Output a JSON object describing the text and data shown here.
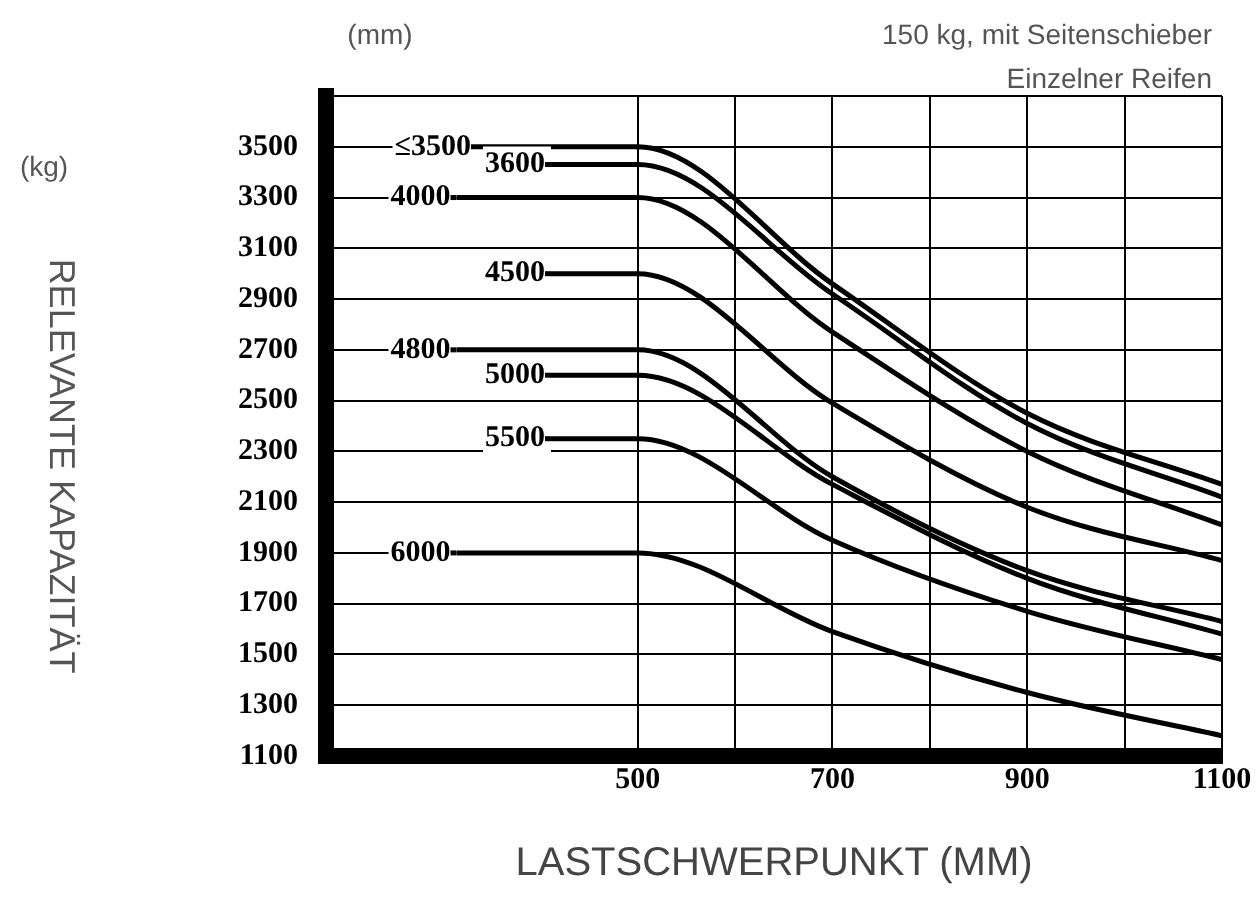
{
  "chart_data": {
    "type": "line",
    "xlabel": "LASTSCHWERPUNKT (MM)",
    "ylabel": "RELEVANTE KAPAZITÄT",
    "annotations": [
      "(mm)",
      "150 kg, mit Seitenschieber",
      "Einzelner Reifen",
      "(kg)"
    ],
    "xlim": [
      180,
      1100
    ],
    "xticks": [
      500,
      {
        "value": 600,
        "label": null
      },
      700,
      {
        "value": 800,
        "label": null
      },
      900,
      {
        "value": 1000,
        "label": null
      },
      1100
    ],
    "ylim": [
      1100,
      3700
    ],
    "yticks": [
      1100,
      1300,
      1500,
      1700,
      1900,
      2100,
      2300,
      2500,
      2700,
      2900,
      3100,
      3300,
      3500,
      {
        "value": 3700,
        "label": null
      }
    ],
    "grid": true,
    "legend": false,
    "marker": "none",
    "line_style": "solid",
    "series": [
      {
        "name": "≤3500",
        "color": "#000000",
        "x": [
          335,
          500,
          700,
          900,
          1100
        ],
        "values": [
          3500,
          3500,
          2960,
          2450,
          2170
        ]
      },
      {
        "name": "3600",
        "color": "#000000",
        "x": [
          411,
          500,
          700,
          900,
          1100
        ],
        "values": [
          3430,
          3430,
          2920,
          2410,
          2120
        ]
      },
      {
        "name": "4000",
        "color": "#000000",
        "x": [
          314,
          500,
          700,
          900,
          1100
        ],
        "values": [
          3300,
          3300,
          2770,
          2300,
          2010
        ]
      },
      {
        "name": "4500",
        "color": "#000000",
        "x": [
          411,
          500,
          700,
          900,
          1100
        ],
        "values": [
          3000,
          3000,
          2490,
          2080,
          1870
        ]
      },
      {
        "name": "4800",
        "color": "#000000",
        "x": [
          314,
          500,
          700,
          900,
          1100
        ],
        "values": [
          2700,
          2700,
          2200,
          1830,
          1630
        ]
      },
      {
        "name": "5000",
        "color": "#000000",
        "x": [
          411,
          500,
          700,
          900,
          1100
        ],
        "values": [
          2600,
          2600,
          2170,
          1800,
          1580
        ]
      },
      {
        "name": "5500",
        "color": "#000000",
        "x": [
          411,
          500,
          700,
          900,
          1100
        ],
        "values": [
          2350,
          2350,
          1950,
          1670,
          1480
        ]
      },
      {
        "name": "6000",
        "color": "#000000",
        "x": [
          314,
          500,
          700,
          900,
          1100
        ],
        "values": [
          1900,
          1900,
          1590,
          1350,
          1180
        ]
      }
    ]
  }
}
